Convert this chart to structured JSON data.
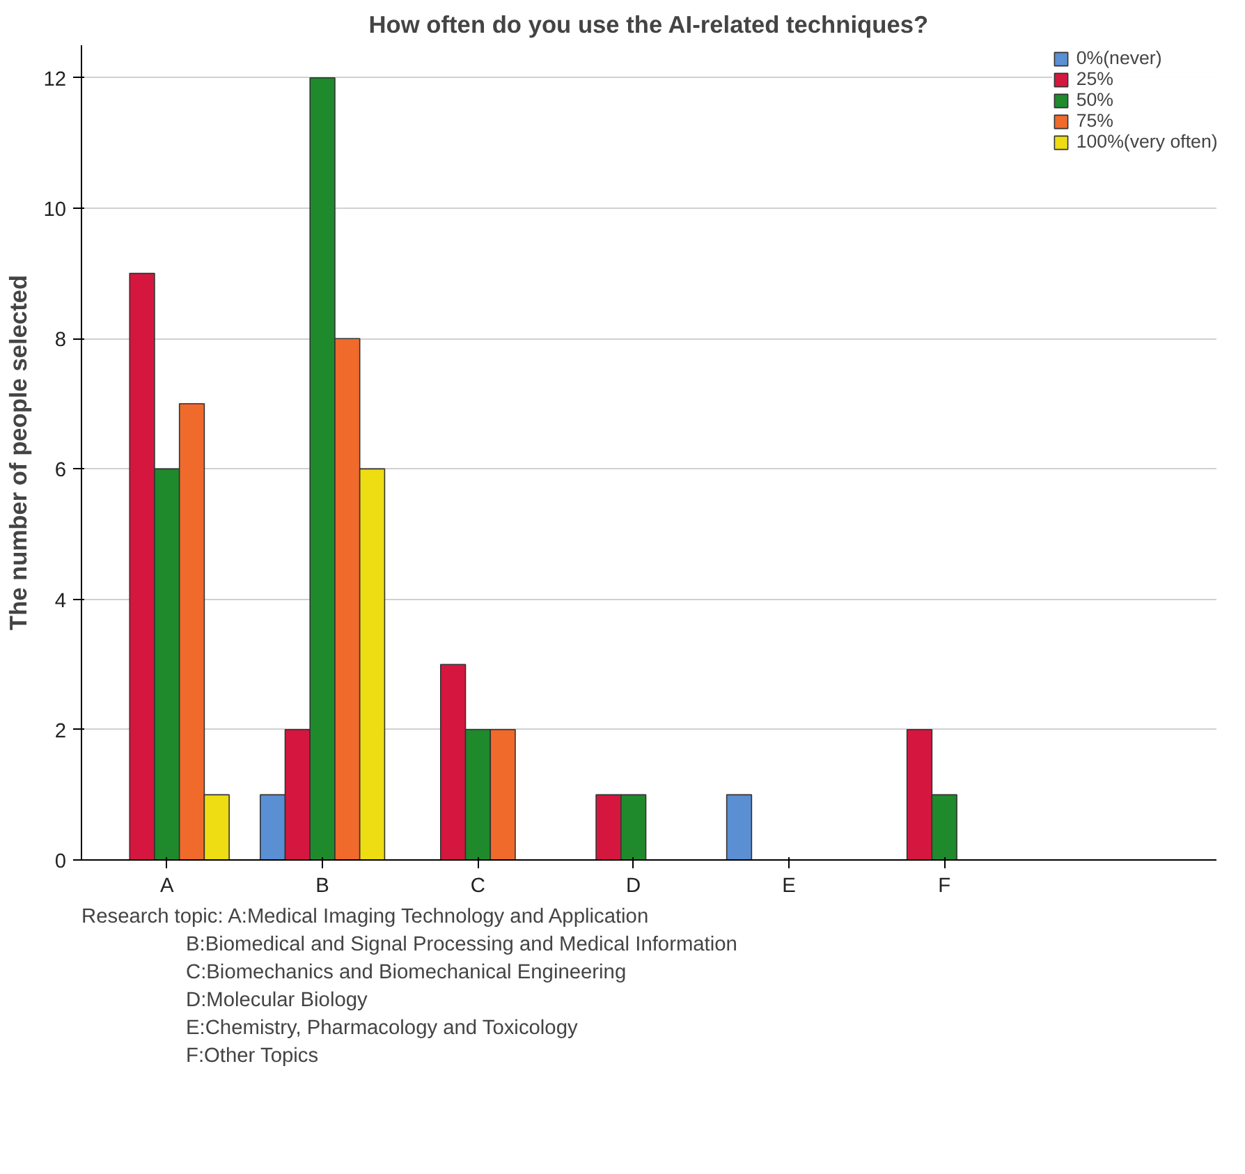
{
  "chart_data": {
    "type": "bar",
    "title": "How often do you use the AI-related techniques?",
    "ylabel": "The number of people selected",
    "categories": [
      "A",
      "B",
      "C",
      "D",
      "E",
      "F"
    ],
    "series": [
      {
        "name": "0%(never)",
        "color": "#5b8fd3",
        "values": [
          null,
          1,
          null,
          null,
          1,
          null
        ]
      },
      {
        "name": "25%",
        "color": "#d5173f",
        "values": [
          9,
          2,
          3,
          1,
          null,
          2
        ]
      },
      {
        "name": "50%",
        "color": "#1f8a2c",
        "values": [
          6,
          12,
          2,
          1,
          null,
          1
        ]
      },
      {
        "name": "75%",
        "color": "#f06a2c",
        "values": [
          7,
          8,
          2,
          null,
          null,
          null
        ]
      },
      {
        "name": "100%(very often)",
        "color": "#eedd12",
        "values": [
          1,
          6,
          null,
          null,
          null,
          null
        ]
      }
    ],
    "ylim": [
      0,
      12.5
    ],
    "yticks": [
      0,
      2,
      4,
      6,
      8,
      10,
      12
    ],
    "grid": "y",
    "legend": "top right",
    "annotations": [
      "Research topic: A:Medical Imaging Technology and Application",
      "B:Biomedical and Signal Processing and Medical Information",
      "C:Biomechanics and Biomechanical Engineering",
      "D:Molecular Biology",
      "E:Chemistry, Pharmacology and Toxicology",
      "F:Other Topics"
    ]
  }
}
